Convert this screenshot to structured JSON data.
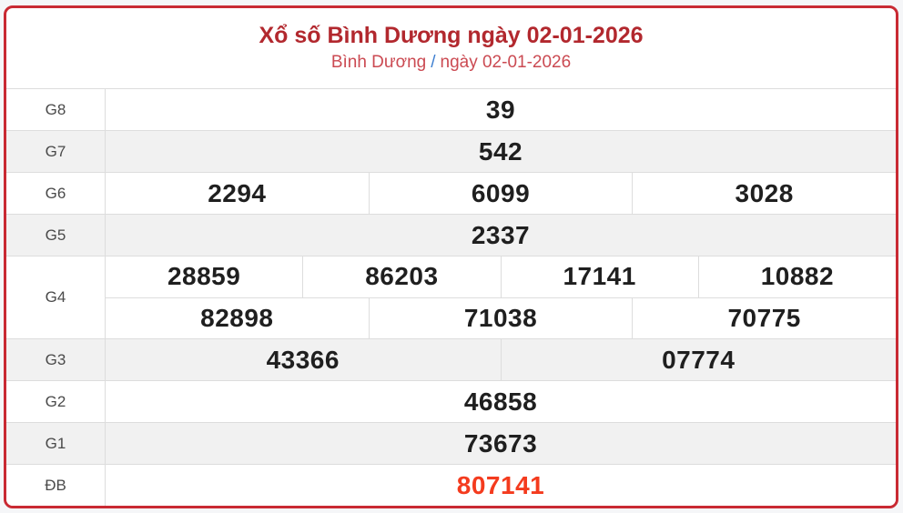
{
  "header": {
    "title": "Xổ số Bình Dương ngày 02-01-2026",
    "breadcrumb": {
      "region": "Bình Dương",
      "separator": "/",
      "date": "ngày 02-01-2026"
    }
  },
  "colors": {
    "card_border": "#c92a33",
    "title": "#b2282e",
    "breadcrumb": "#cb4a52",
    "breadcrumb_separator": "#3d7ed0",
    "special_prize": "#f43b1e",
    "number": "#1f1f1f",
    "alt_row_background": "#f1f1f1"
  },
  "table": {
    "rows": [
      {
        "label": "G8",
        "groups": [
          [
            "39"
          ]
        ]
      },
      {
        "label": "G7",
        "groups": [
          [
            "542"
          ]
        ]
      },
      {
        "label": "G6",
        "groups": [
          [
            "2294",
            "6099",
            "3028"
          ]
        ]
      },
      {
        "label": "G5",
        "groups": [
          [
            "2337"
          ]
        ]
      },
      {
        "label": "G4",
        "groups": [
          [
            "28859",
            "86203",
            "17141",
            "10882"
          ],
          [
            "82898",
            "71038",
            "70775"
          ]
        ]
      },
      {
        "label": "G3",
        "groups": [
          [
            "43366",
            "07774"
          ]
        ]
      },
      {
        "label": "G2",
        "groups": [
          [
            "46858"
          ]
        ]
      },
      {
        "label": "G1",
        "groups": [
          [
            "73673"
          ]
        ]
      },
      {
        "label": "ĐB",
        "groups": [
          [
            "807141"
          ]
        ],
        "special": true
      }
    ]
  }
}
